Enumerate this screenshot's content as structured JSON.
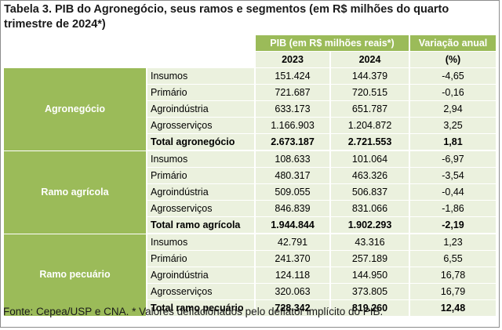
{
  "title": "Tabela 3. PIB do Agronegócio, seus ramos e segmentos (em R$ milhões do quarto trimestre de 2024*)",
  "header": {
    "pib_group": "PIB (em R$ milhões reais*)",
    "var_group": "Variação anual",
    "year1": "2023",
    "year2": "2024",
    "var_unit": "(%)"
  },
  "groups": [
    {
      "name": "Agronegócio",
      "rows": [
        {
          "segment": "Insumos",
          "y2023": "151.424",
          "y2024": "144.379",
          "var": "-4,65"
        },
        {
          "segment": "Primário",
          "y2023": "721.687",
          "y2024": "720.515",
          "var": "-0,16"
        },
        {
          "segment": "Agroindústria",
          "y2023": "633.173",
          "y2024": "651.787",
          "var": "2,94"
        },
        {
          "segment": "Agrosserviços",
          "y2023": "1.166.903",
          "y2024": "1.204.872",
          "var": "3,25"
        },
        {
          "segment": "Total agronegócio",
          "y2023": "2.673.187",
          "y2024": "2.721.553",
          "var": "1,81"
        }
      ]
    },
    {
      "name": "Ramo agrícola",
      "rows": [
        {
          "segment": "Insumos",
          "y2023": "108.633",
          "y2024": "101.064",
          "var": "-6,97"
        },
        {
          "segment": "Primário",
          "y2023": "480.317",
          "y2024": "463.326",
          "var": "-3,54"
        },
        {
          "segment": "Agroindústria",
          "y2023": "509.055",
          "y2024": "506.837",
          "var": "-0,44"
        },
        {
          "segment": "Agrosserviços",
          "y2023": "846.839",
          "y2024": "831.066",
          "var": "-1,86"
        },
        {
          "segment": "Total ramo agrícola",
          "y2023": "1.944.844",
          "y2024": "1.902.293",
          "var": "-2,19"
        }
      ]
    },
    {
      "name": "Ramo pecuário",
      "rows": [
        {
          "segment": "Insumos",
          "y2023": "42.791",
          "y2024": "43.316",
          "var": "1,23"
        },
        {
          "segment": "Primário",
          "y2023": "241.370",
          "y2024": "257.189",
          "var": "6,55"
        },
        {
          "segment": "Agroindústria",
          "y2023": "124.118",
          "y2024": "144.950",
          "var": "16,78"
        },
        {
          "segment": "Agrosserviços",
          "y2023": "320.063",
          "y2024": "373.805",
          "var": "16,79"
        },
        {
          "segment": "Total ramo pecuário",
          "y2023": "728.342",
          "y2024": "819.260",
          "var": "12,48"
        }
      ]
    }
  ],
  "source": "Fonte: Cepea/USP e CNA. * Valores deflacionados pelo deflator implícito do PIB.",
  "colors": {
    "band_green": "#9bbb59",
    "light_green": "#ebf1de"
  }
}
